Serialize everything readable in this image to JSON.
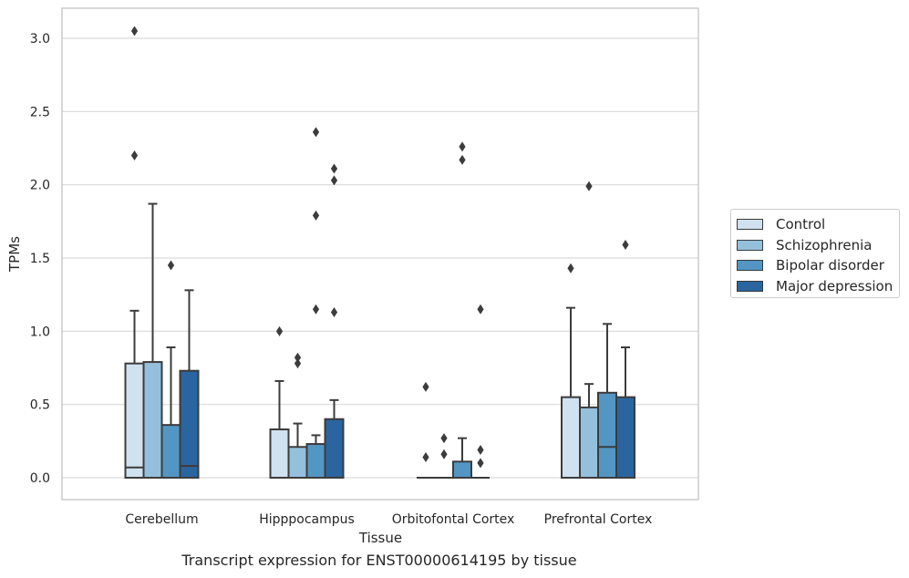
{
  "chart_data": {
    "type": "boxplot",
    "title": "",
    "xlabel": "Tissue",
    "ylabel": "TPMs",
    "ylim": [
      -0.15,
      3.2
    ],
    "yticks": [
      "0.0",
      "0.5",
      "1.0",
      "1.5",
      "2.0",
      "2.5",
      "3.0"
    ],
    "ytick_values": [
      0,
      0.5,
      1.0,
      1.5,
      2.0,
      2.5,
      3.0
    ],
    "grid": true,
    "legend_position": "right",
    "categories": [
      "Cerebellum",
      "Hipppocampus",
      "Orbitofontal Cortex",
      "Prefrontal Cortex"
    ],
    "series": [
      {
        "name": "Control",
        "color": "#d0e1f0",
        "boxes": [
          {
            "q1": 0,
            "median": 0.07,
            "q3": 0.78,
            "whisker_low": 0,
            "whisker_high": 1.14,
            "outliers": [
              3.05,
              2.2
            ]
          },
          {
            "q1": 0,
            "median": 0,
            "q3": 0.33,
            "whisker_low": 0,
            "whisker_high": 0.66,
            "outliers": [
              1.0
            ]
          },
          {
            "q1": 0,
            "median": 0,
            "q3": 0,
            "whisker_low": 0,
            "whisker_high": 0,
            "outliers": [
              0.62,
              0.14
            ]
          },
          {
            "q1": 0,
            "median": 0,
            "q3": 0.55,
            "whisker_low": 0,
            "whisker_high": 1.16,
            "outliers": [
              1.43
            ]
          }
        ]
      },
      {
        "name": "Schizophrenia",
        "color": "#94c0dc",
        "boxes": [
          {
            "q1": 0,
            "median": 0,
            "q3": 0.79,
            "whisker_low": 0,
            "whisker_high": 1.87,
            "outliers": []
          },
          {
            "q1": 0,
            "median": 0,
            "q3": 0.21,
            "whisker_low": 0,
            "whisker_high": 0.37,
            "outliers": [
              0.82,
              0.78
            ]
          },
          {
            "q1": 0,
            "median": 0,
            "q3": 0,
            "whisker_low": 0,
            "whisker_high": 0,
            "outliers": [
              0.27,
              0.16
            ]
          },
          {
            "q1": 0,
            "median": 0,
            "q3": 0.48,
            "whisker_low": 0,
            "whisker_high": 0.64,
            "outliers": [
              1.99
            ]
          }
        ]
      },
      {
        "name": "Bipolar disorder",
        "color": "#5396c4",
        "boxes": [
          {
            "q1": 0,
            "median": 0,
            "q3": 0.36,
            "whisker_low": 0,
            "whisker_high": 0.89,
            "outliers": [
              1.45
            ]
          },
          {
            "q1": 0,
            "median": 0,
            "q3": 0.23,
            "whisker_low": 0,
            "whisker_high": 0.29,
            "outliers": [
              2.36,
              1.79,
              1.15
            ]
          },
          {
            "q1": 0,
            "median": 0,
            "q3": 0.11,
            "whisker_low": 0,
            "whisker_high": 0.27,
            "outliers": [
              2.26,
              2.17
            ]
          },
          {
            "q1": 0,
            "median": 0.21,
            "q3": 0.58,
            "whisker_low": 0,
            "whisker_high": 1.05,
            "outliers": []
          }
        ]
      },
      {
        "name": "Major depression",
        "color": "#2a65a0",
        "boxes": [
          {
            "q1": 0,
            "median": 0.08,
            "q3": 0.73,
            "whisker_low": 0,
            "whisker_high": 1.28,
            "outliers": []
          },
          {
            "q1": 0,
            "median": 0,
            "q3": 0.4,
            "whisker_low": 0,
            "whisker_high": 0.53,
            "outliers": [
              2.11,
              2.03,
              1.13
            ]
          },
          {
            "q1": 0,
            "median": 0,
            "q3": 0,
            "whisker_low": 0,
            "whisker_high": 0,
            "outliers": [
              1.15,
              0.19,
              0.1
            ]
          },
          {
            "q1": 0,
            "median": 0,
            "q3": 0.55,
            "whisker_low": 0,
            "whisker_high": 0.89,
            "outliers": [
              1.59
            ]
          }
        ]
      }
    ]
  },
  "caption": "Transcript expression for ENST00000614195 by tissue"
}
